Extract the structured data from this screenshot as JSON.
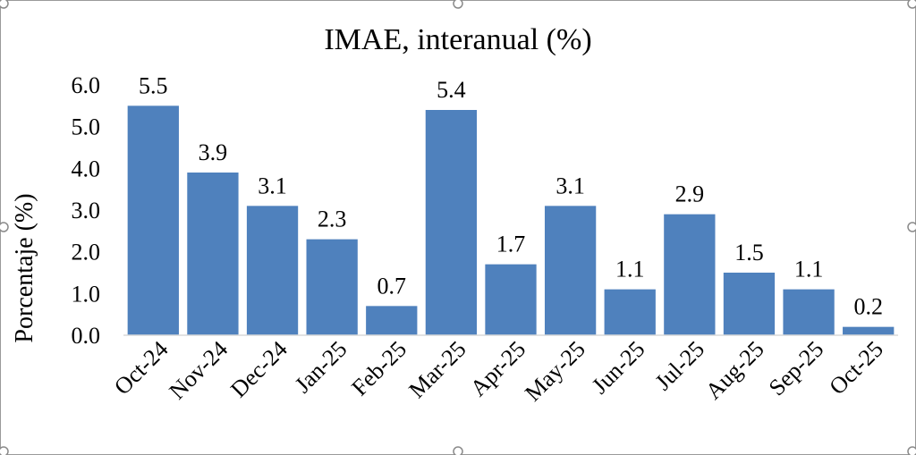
{
  "chart_data": {
    "type": "bar",
    "title": "IMAE, interanual (%)",
    "xlabel": "",
    "ylabel": "Porcentaje (%)",
    "ylim": [
      0,
      6
    ],
    "yticks": [
      "0.0",
      "1.0",
      "2.0",
      "3.0",
      "4.0",
      "5.0",
      "6.0"
    ],
    "categories": [
      "Oct-24",
      "Nov-24",
      "Dec-24",
      "Jan-25",
      "Feb-25",
      "Mar-25",
      "Apr-25",
      "May-25",
      "Jun-25",
      "Jul-25",
      "Aug-25",
      "Sep-25",
      "Oct-25"
    ],
    "values": [
      5.5,
      3.9,
      3.1,
      2.3,
      0.7,
      5.4,
      1.7,
      3.1,
      1.1,
      2.9,
      1.5,
      1.1,
      0.2
    ],
    "data_labels": [
      "5.5",
      "3.9",
      "3.1",
      "2.3",
      "0.7",
      "5.4",
      "1.7",
      "3.1",
      "1.1",
      "2.9",
      "1.5",
      "1.1",
      "0.2"
    ],
    "bar_color": "#4f81bd",
    "grid": false,
    "legend": "none"
  }
}
